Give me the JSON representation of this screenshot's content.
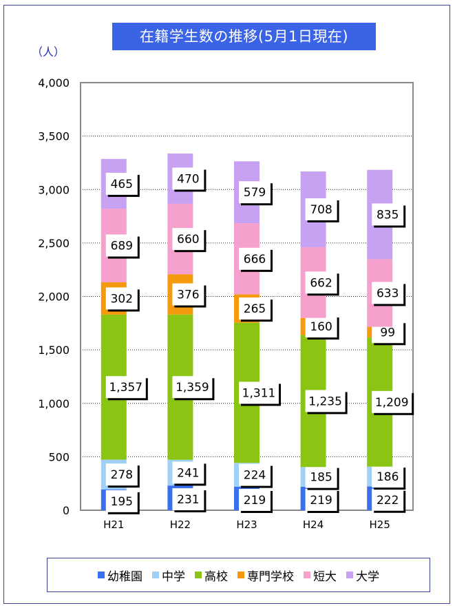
{
  "chart_data": {
    "type": "stacked-bar",
    "title": "在籍学生数の推移(5月1日現在)",
    "unit_label": "（人）",
    "categories": [
      "H21",
      "H22",
      "H23",
      "H24",
      "H25"
    ],
    "ylim": [
      0,
      4000
    ],
    "yticks": [
      0,
      500,
      1000,
      1500,
      2000,
      2500,
      3000,
      3500,
      4000
    ],
    "ytick_labels": [
      "0",
      "500",
      "1,000",
      "1,500",
      "2,000",
      "2,500",
      "3,000",
      "3,500",
      "4,000"
    ],
    "grid": true,
    "legend_position": "bottom",
    "series": [
      {
        "name": "幼稚園",
        "color": "#3a6ff0",
        "values": [
          195,
          231,
          219,
          219,
          222
        ]
      },
      {
        "name": "中学",
        "color": "#9fd0f7",
        "values": [
          278,
          241,
          224,
          185,
          186
        ]
      },
      {
        "name": "高校",
        "color": "#8cc414",
        "values": [
          1357,
          1359,
          1311,
          1235,
          1209
        ]
      },
      {
        "name": "専門学校",
        "color": "#f59a0c",
        "values": [
          302,
          376,
          265,
          160,
          99
        ]
      },
      {
        "name": "短大",
        "color": "#f5a0cd",
        "values": [
          689,
          660,
          666,
          662,
          633
        ]
      },
      {
        "name": "大学",
        "color": "#c8a2f2",
        "values": [
          465,
          470,
          579,
          708,
          835
        ]
      }
    ],
    "value_labels": [
      [
        "195",
        "231",
        "219",
        "219",
        "222"
      ],
      [
        "278",
        "241",
        "224",
        "185",
        "186"
      ],
      [
        "1,357",
        "1,359",
        "1,311",
        "1,235",
        "1,209"
      ],
      [
        "302",
        "376",
        "265",
        "160",
        "99"
      ],
      [
        "689",
        "660",
        "666",
        "662",
        "633"
      ],
      [
        "465",
        "470",
        "579",
        "708",
        "835"
      ]
    ]
  }
}
